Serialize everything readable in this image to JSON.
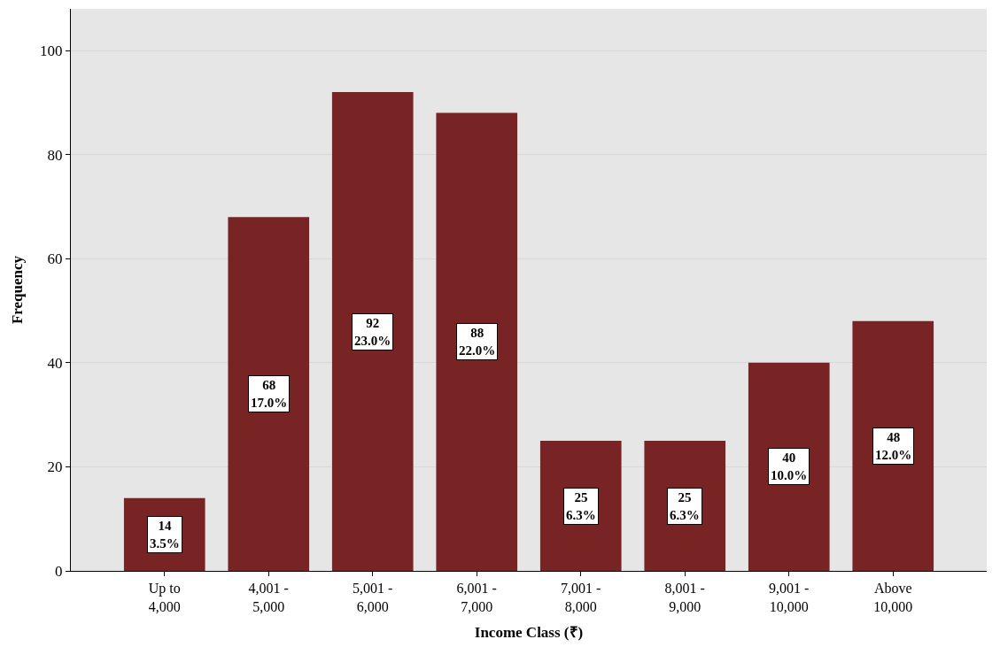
{
  "chart_data": {
    "type": "bar",
    "xlabel": "Income Class (₹)",
    "ylabel": "Frequency",
    "categories": [
      "Up to\n4,000",
      "4,001 -\n5,000",
      "5,001 -\n6,000",
      "6,001 -\n7,000",
      "7,001 -\n8,000",
      "8,001 -\n9,000",
      "9,001 -\n10,000",
      "Above\n10,000"
    ],
    "values": [
      14,
      68,
      92,
      88,
      25,
      25,
      40,
      48
    ],
    "value_labels": [
      "14\n3.5%",
      "68\n17.0%",
      "92\n23.0%",
      "88\n22.0%",
      "25\n6.3%",
      "25\n6.3%",
      "40\n10.0%",
      "48\n12.0%"
    ],
    "color": "#782424",
    "ylim": [
      0,
      108
    ],
    "yticks": [
      0,
      20,
      40,
      60,
      80,
      100
    ],
    "grid": "y"
  }
}
